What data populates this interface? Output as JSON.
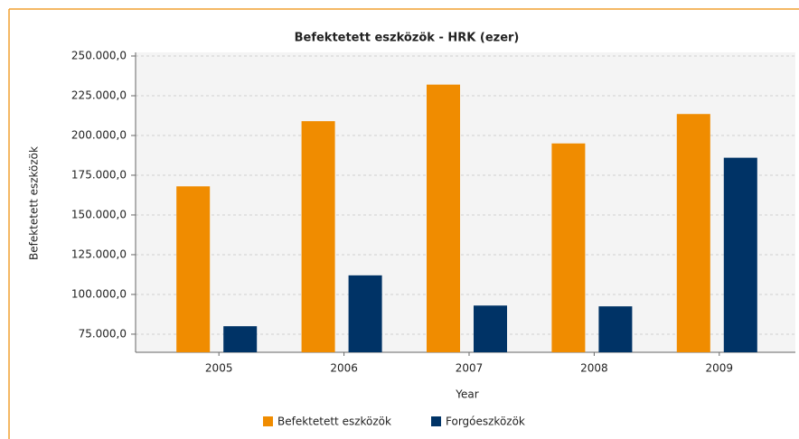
{
  "chart_data": {
    "type": "bar",
    "title": "Befektetett eszközök - HRK (ezer)",
    "x_label": "Year",
    "y_label": "Befektetett eszközök",
    "categories": [
      "2005",
      "2006",
      "2007",
      "2008",
      "2009"
    ],
    "series": [
      {
        "name": "Befektetett eszközök",
        "color": "#f08c00",
        "values": [
          168000,
          209000,
          232000,
          195000,
          213500
        ]
      },
      {
        "name": "Forgóeszközök",
        "color": "#003366",
        "values": [
          80000,
          112000,
          93000,
          92500,
          186000
        ]
      }
    ],
    "ylim": [
      63600,
      250000
    ],
    "yticks": [
      {
        "value": 75000,
        "label": "75.000,0"
      },
      {
        "value": 100000,
        "label": "100.000,0"
      },
      {
        "value": 125000,
        "label": "125.000,0"
      },
      {
        "value": 150000,
        "label": "150.000,0"
      },
      {
        "value": 175000,
        "label": "175.000,0"
      },
      {
        "value": 200000,
        "label": "200.000,0"
      },
      {
        "value": 225000,
        "label": "225.000,0"
      },
      {
        "value": 250000,
        "label": "250.000,0"
      }
    ],
    "grid": true,
    "legend": "bottom"
  }
}
